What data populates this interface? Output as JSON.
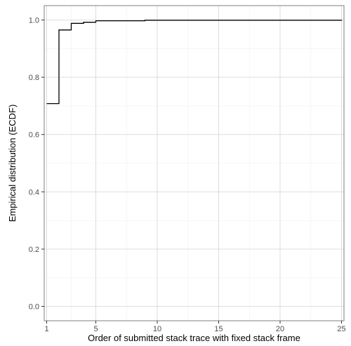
{
  "chart_data": {
    "type": "line",
    "step": true,
    "title": "",
    "xlabel": "Order of submitted stack trace with fixed stack frame",
    "ylabel": "Empirical distribution (ECDF)",
    "xlim": [
      0.8,
      25.2
    ],
    "ylim": [
      -0.05,
      1.05
    ],
    "x_ticks": [
      1,
      5,
      10,
      15,
      20,
      25
    ],
    "x_tick_labels": [
      "1",
      "5",
      "10",
      "15",
      "20",
      "25"
    ],
    "y_ticks": [
      0.0,
      0.2,
      0.4,
      0.6,
      0.8,
      1.0
    ],
    "y_tick_labels": [
      "0.0",
      "0.2",
      "0.4",
      "0.6",
      "0.8",
      "1.0"
    ],
    "grid": true,
    "series": [
      {
        "x": [
          1,
          2,
          3,
          4,
          5,
          9,
          25
        ],
        "y": [
          0.708,
          0.965,
          0.988,
          0.992,
          0.997,
          0.999,
          1.0
        ]
      }
    ],
    "colors": {
      "line": "#000000",
      "grid_major": "#d9d9d9",
      "grid_minor": "#efefef",
      "border": "#7f7f7f"
    }
  }
}
